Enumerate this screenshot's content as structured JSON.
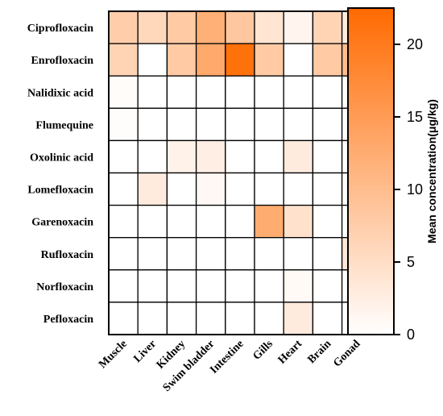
{
  "chart_data": {
    "type": "heatmap",
    "rows": [
      "Ciprofloxacin",
      "Enrofloxacin",
      "Nalidixic acid",
      "Flumequine",
      "Oxolinic acid",
      "Lomefloxacin",
      "Garenoxacin",
      "Rufloxacin",
      "Norfloxacin",
      "Pefloxacin"
    ],
    "columns": [
      "Muscle",
      "Liver",
      "Kidney",
      "Swim bladder",
      "Intestine",
      "Gills",
      "Heart",
      "Brain",
      "Gonad"
    ],
    "values": [
      [
        7.5,
        6,
        8,
        12,
        8.5,
        4,
        1.5,
        6.5,
        3
      ],
      [
        6.5,
        0,
        8,
        13,
        21.5,
        8,
        0,
        8,
        10
      ],
      [
        0.5,
        0,
        0,
        0,
        0,
        0,
        0,
        0,
        0
      ],
      [
        0.3,
        0,
        0,
        0,
        0,
        0,
        0,
        0,
        0
      ],
      [
        0,
        0,
        2,
        2.5,
        0,
        0,
        3,
        0,
        0
      ],
      [
        0,
        3,
        0,
        1,
        0,
        0,
        0,
        0,
        0
      ],
      [
        0,
        0,
        0,
        0,
        0,
        12.5,
        4.5,
        0,
        0
      ],
      [
        0,
        0,
        0,
        0,
        0,
        0,
        0,
        0,
        3.5
      ],
      [
        0,
        0,
        0,
        0,
        0,
        0,
        0.8,
        0,
        0
      ],
      [
        0,
        0,
        0,
        0,
        0,
        0,
        3,
        0,
        0
      ]
    ],
    "colorbar": {
      "label": "Mean concentration(μg/kg)",
      "min": 0,
      "max": 22.5,
      "ticks": [
        0,
        5,
        10,
        15,
        20
      ],
      "color_low": "#ffffff",
      "color_high": "#ff6a00"
    }
  }
}
